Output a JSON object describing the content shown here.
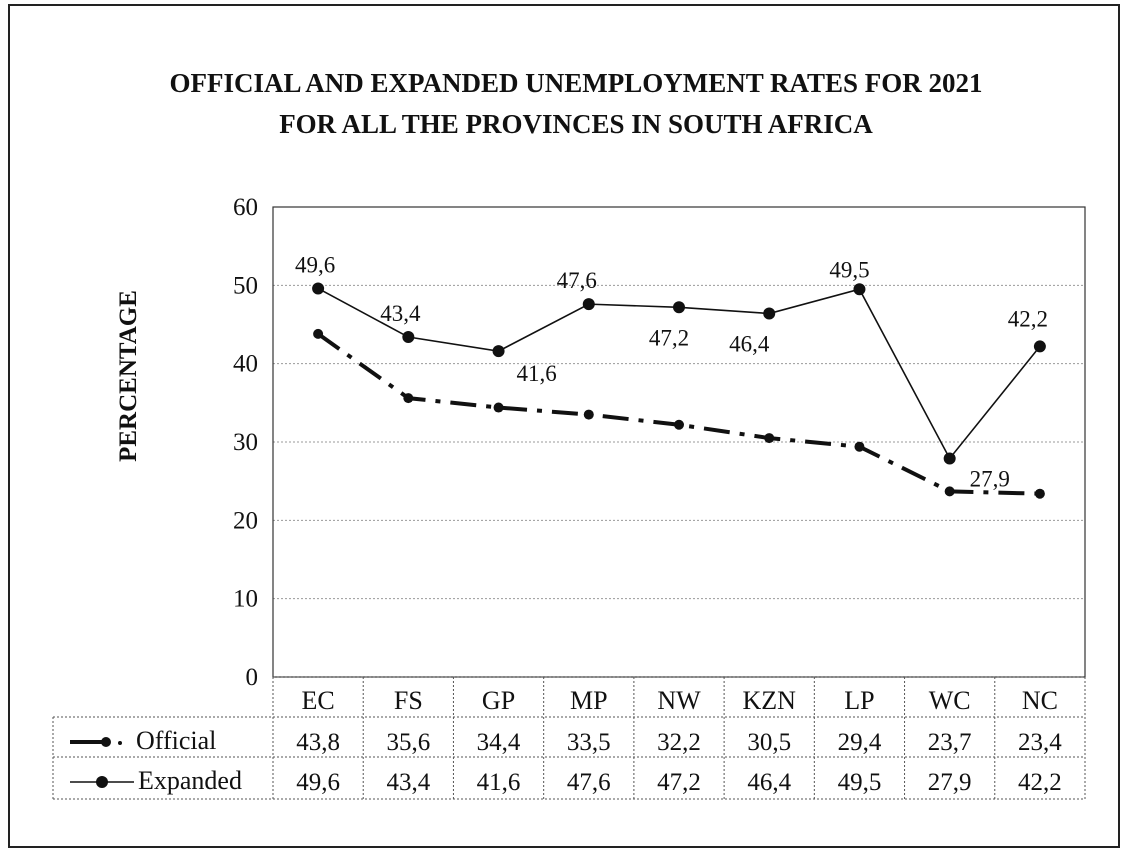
{
  "chart_data": {
    "type": "line",
    "title_line1": "OFFICIAL AND EXPANDED UNEMPLOYMENT RATES FOR 2021",
    "title_line2": "FOR ALL THE PROVINCES IN SOUTH AFRICA",
    "ylabel": "PERCENTAGE",
    "xlabel": "",
    "ylim": [
      0,
      60
    ],
    "yticks": [
      0,
      10,
      20,
      30,
      40,
      50,
      60
    ],
    "grid": true,
    "legend": "data table below chart",
    "categories": [
      "EC",
      "FS",
      "GP",
      "MP",
      "NW",
      "KZN",
      "LP",
      "WC",
      "NC"
    ],
    "series": [
      {
        "name": "Official",
        "values": [
          43.8,
          35.6,
          34.4,
          33.5,
          32.2,
          30.5,
          29.4,
          23.7,
          23.4
        ],
        "labels": [
          "43,8",
          "35,6",
          "34,4",
          "33,5",
          "32,2",
          "30,5",
          "29,4",
          "23,7",
          "23,4"
        ],
        "style": "dash-dot",
        "color": "#111111"
      },
      {
        "name": "Expanded",
        "values": [
          49.6,
          43.4,
          41.6,
          47.6,
          47.2,
          46.4,
          49.5,
          27.9,
          42.2
        ],
        "labels": [
          "49,6",
          "43,4",
          "41,6",
          "47,6",
          "47,2",
          "46,4",
          "49,5",
          "27,9",
          "42,2"
        ],
        "style": "solid",
        "color": "#111111"
      }
    ]
  }
}
